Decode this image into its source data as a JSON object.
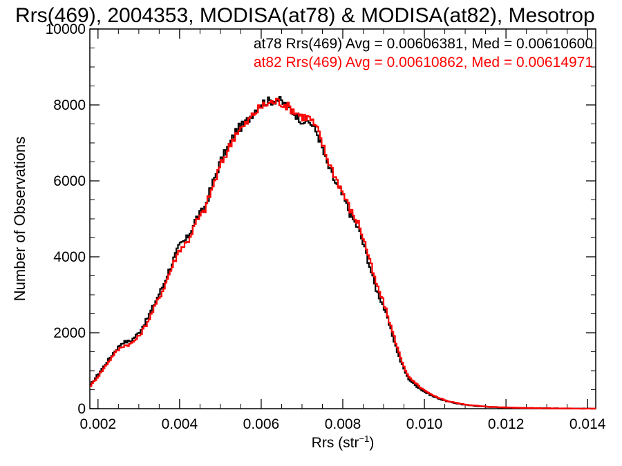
{
  "chart_data": {
    "type": "line",
    "title": "Rrs(469), 2004353, MODISA(at78) & MODISA(at82), Mesotrop",
    "xlabel": "Rrs (str",
    "xlabel_sup": "−1",
    "xlabel_close": ")",
    "ylabel": "Number of Observations",
    "xlim": [
      0.0018,
      0.0142
    ],
    "ylim": [
      0,
      10000
    ],
    "xticks": [
      0.002,
      0.004,
      0.006,
      0.008,
      0.01,
      0.012,
      0.014
    ],
    "xtick_labels": [
      "0.002",
      "0.004",
      "0.006",
      "0.008",
      "0.010",
      "0.012",
      "0.014"
    ],
    "yticks": [
      0,
      2000,
      4000,
      6000,
      8000,
      10000
    ],
    "ytick_labels": [
      "0",
      "2000",
      "4000",
      "6000",
      "8000",
      "10000"
    ],
    "grid": false,
    "step": true,
    "series": [
      {
        "name": "at78",
        "color": "#000000",
        "legend": "at78 Rrs(469) Avg = 0.00606381, Med = 0.00610600",
        "x": [
          0.0018,
          0.002,
          0.0022,
          0.0024,
          0.0026,
          0.0028,
          0.003,
          0.0032,
          0.0034,
          0.0036,
          0.0038,
          0.004,
          0.0042,
          0.0044,
          0.0046,
          0.0048,
          0.005,
          0.0052,
          0.0054,
          0.0056,
          0.0058,
          0.006,
          0.0062,
          0.0064,
          0.0066,
          0.0068,
          0.007,
          0.0072,
          0.0074,
          0.0076,
          0.0078,
          0.008,
          0.0082,
          0.0084,
          0.0086,
          0.0088,
          0.009,
          0.0092,
          0.0094,
          0.0096,
          0.0098,
          0.01,
          0.0102,
          0.0104,
          0.0106,
          0.0108,
          0.011,
          0.0114,
          0.0118,
          0.0122,
          0.0126,
          0.013,
          0.0134,
          0.0138,
          0.0142
        ],
        "values": [
          600,
          900,
          1200,
          1500,
          1750,
          1780,
          2000,
          2350,
          2800,
          3250,
          3800,
          4300,
          4500,
          5000,
          5250,
          5900,
          6500,
          6900,
          7350,
          7500,
          7800,
          8050,
          8100,
          8150,
          8000,
          7800,
          7600,
          7550,
          7200,
          6500,
          6000,
          5600,
          5100,
          4700,
          4000,
          3200,
          2700,
          2000,
          1300,
          800,
          600,
          450,
          330,
          250,
          180,
          140,
          100,
          60,
          35,
          25,
          15,
          10,
          6,
          4,
          2
        ]
      },
      {
        "name": "at82",
        "color": "#ff0000",
        "legend": "at82 Rrs(469) Avg = 0.00610862, Med = 0.00614971",
        "x": [
          0.0018,
          0.002,
          0.0022,
          0.0024,
          0.0026,
          0.0028,
          0.003,
          0.0032,
          0.0034,
          0.0036,
          0.0038,
          0.004,
          0.0042,
          0.0044,
          0.0046,
          0.0048,
          0.005,
          0.0052,
          0.0054,
          0.0056,
          0.0058,
          0.006,
          0.0062,
          0.0064,
          0.0066,
          0.0068,
          0.007,
          0.0072,
          0.0074,
          0.0076,
          0.0078,
          0.008,
          0.0082,
          0.0084,
          0.0086,
          0.0088,
          0.009,
          0.0092,
          0.0094,
          0.0096,
          0.0098,
          0.01,
          0.0102,
          0.0104,
          0.0106,
          0.0108,
          0.011,
          0.0114,
          0.0118,
          0.0122,
          0.0126,
          0.013,
          0.0134,
          0.0138,
          0.0142
        ],
        "values": [
          580,
          850,
          1150,
          1450,
          1650,
          1700,
          1900,
          2250,
          2700,
          3150,
          3700,
          4200,
          4400,
          4900,
          5200,
          5800,
          6400,
          6850,
          7300,
          7450,
          7750,
          7950,
          8050,
          8100,
          8000,
          7850,
          7700,
          7650,
          7300,
          6650,
          6150,
          5700,
          5200,
          4850,
          4150,
          3350,
          2800,
          2100,
          1400,
          850,
          650,
          480,
          350,
          270,
          190,
          150,
          110,
          65,
          40,
          28,
          18,
          12,
          7,
          5,
          3
        ]
      }
    ]
  }
}
